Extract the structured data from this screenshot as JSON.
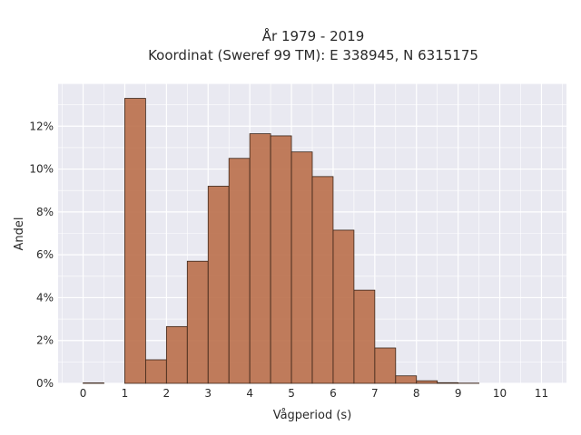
{
  "chart_data": {
    "type": "bar",
    "title_line1": "År 1979 - 2019",
    "title_line2": "Koordinat (Sweref 99 TM): E 338945, N 6315175",
    "xlabel": "Vågperiod (s)",
    "ylabel": "Andel",
    "bin_width": 0.5,
    "bins": [
      {
        "start": 0.0,
        "value": 0.02
      },
      {
        "start": 0.5,
        "value": 0.0
      },
      {
        "start": 1.0,
        "value": 13.3
      },
      {
        "start": 1.5,
        "value": 1.1
      },
      {
        "start": 2.0,
        "value": 2.65
      },
      {
        "start": 2.5,
        "value": 5.7
      },
      {
        "start": 3.0,
        "value": 9.2
      },
      {
        "start": 3.5,
        "value": 10.5
      },
      {
        "start": 4.0,
        "value": 11.65
      },
      {
        "start": 4.5,
        "value": 11.55
      },
      {
        "start": 5.0,
        "value": 10.8
      },
      {
        "start": 5.5,
        "value": 9.65
      },
      {
        "start": 6.0,
        "value": 7.15
      },
      {
        "start": 6.5,
        "value": 4.35
      },
      {
        "start": 7.0,
        "value": 1.65
      },
      {
        "start": 7.5,
        "value": 0.35
      },
      {
        "start": 8.0,
        "value": 0.12
      },
      {
        "start": 8.5,
        "value": 0.03
      },
      {
        "start": 9.0,
        "value": 0.01
      }
    ],
    "xlim": [
      -0.6,
      11.6
    ],
    "ylim": [
      0,
      14
    ],
    "xticks": [
      0,
      1,
      2,
      3,
      4,
      5,
      6,
      7,
      8,
      9,
      10,
      11
    ],
    "xtick_labels": [
      "0",
      "1",
      "2",
      "3",
      "4",
      "5",
      "6",
      "7",
      "8",
      "9",
      "10",
      "11"
    ],
    "yticks": [
      0,
      2,
      4,
      6,
      8,
      10,
      12
    ],
    "ytick_labels": [
      "0%",
      "2%",
      "4%",
      "6%",
      "8%",
      "10%",
      "12%"
    ],
    "grid": true,
    "colors": {
      "bar": "#b86b45",
      "plot_background": "#e9e9f1",
      "grid": "#ffffff"
    }
  }
}
